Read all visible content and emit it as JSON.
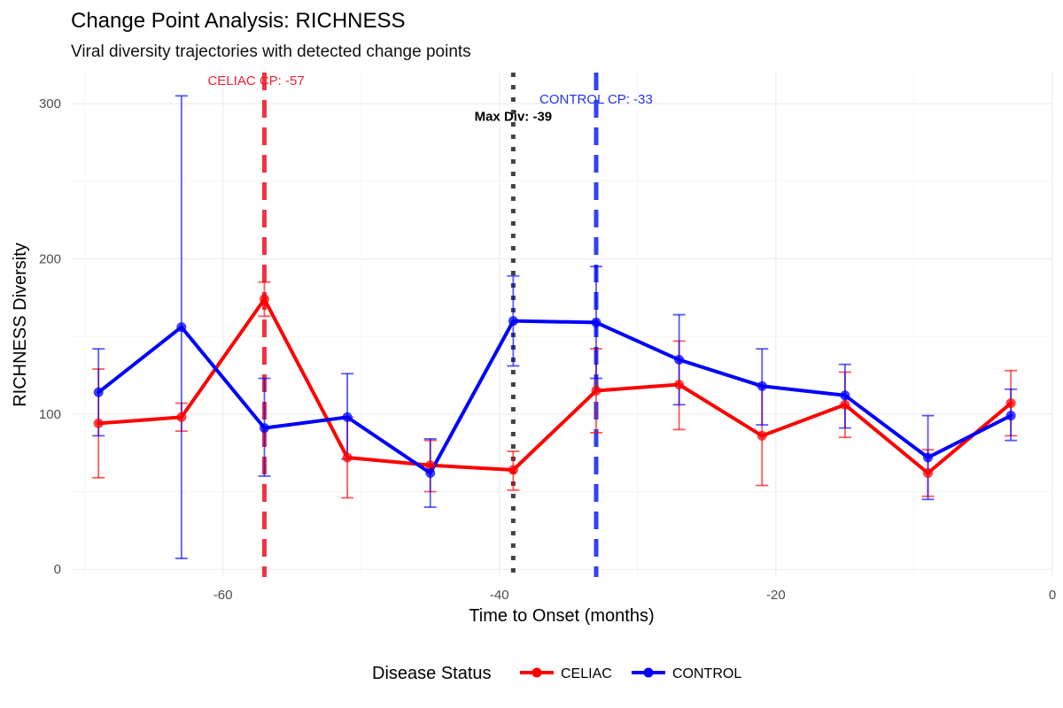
{
  "chart_data": {
    "type": "line",
    "title": "Change Point Analysis: RICHNESS",
    "subtitle": "Viral diversity trajectories with detected change points",
    "xlabel": "Time to Onset (months)",
    "ylabel": "RICHNESS Diversity",
    "xlim": [
      -71,
      0
    ],
    "ylim": [
      -5,
      320
    ],
    "x_ticks": [
      -60,
      -40,
      -20,
      0
    ],
    "y_ticks": [
      0,
      100,
      200,
      300
    ],
    "x_tick_labels": [
      "-60",
      "-40",
      "-20",
      "0"
    ],
    "y_tick_labels": [
      "0",
      "100",
      "200",
      "300"
    ],
    "grid": true,
    "legend": {
      "title": "Disease Status",
      "position": "bottom"
    },
    "series": [
      {
        "name": "CELIAC",
        "color": "#ff0000",
        "x": [
          -69,
          -63,
          -57,
          -51,
          -45,
          -39,
          -33,
          -27,
          -21,
          -15,
          -9,
          -3
        ],
        "y": [
          94,
          98,
          174,
          72,
          67,
          64,
          115,
          119,
          86,
          106,
          62,
          107
        ],
        "lower": [
          59,
          89,
          163,
          46,
          50,
          51,
          88,
          90,
          54,
          85,
          47,
          86
        ],
        "upper": [
          129,
          107,
          185,
          98,
          83,
          76,
          142,
          147,
          118,
          127,
          77,
          128
        ]
      },
      {
        "name": "CONTROL",
        "color": "#0000ff",
        "x": [
          -69,
          -63,
          -57,
          -51,
          -45,
          -39,
          -33,
          -27,
          -21,
          -15,
          -9,
          -3
        ],
        "y": [
          114,
          156,
          91,
          98,
          62,
          160,
          159,
          135,
          118,
          112,
          72,
          99
        ],
        "lower": [
          86,
          7,
          60,
          71,
          40,
          131,
          123,
          106,
          93,
          91,
          45,
          83
        ],
        "upper": [
          142,
          305,
          123,
          126,
          84,
          189,
          195,
          164,
          142,
          132,
          99,
          116
        ]
      }
    ],
    "annotations": [
      {
        "type": "vline",
        "x": -57,
        "color": "#ee2233",
        "style": "dashed",
        "label": "CELIAC CP: -57",
        "label_y": 312
      },
      {
        "type": "vline",
        "x": -33,
        "color": "#2233ee",
        "style": "dashed",
        "label": "CONTROL CP: -33",
        "label_y": 300
      },
      {
        "type": "vline",
        "x": -39,
        "color": "#333333",
        "style": "dotted",
        "label": "Max Div: -39",
        "label_y": 289
      }
    ]
  }
}
